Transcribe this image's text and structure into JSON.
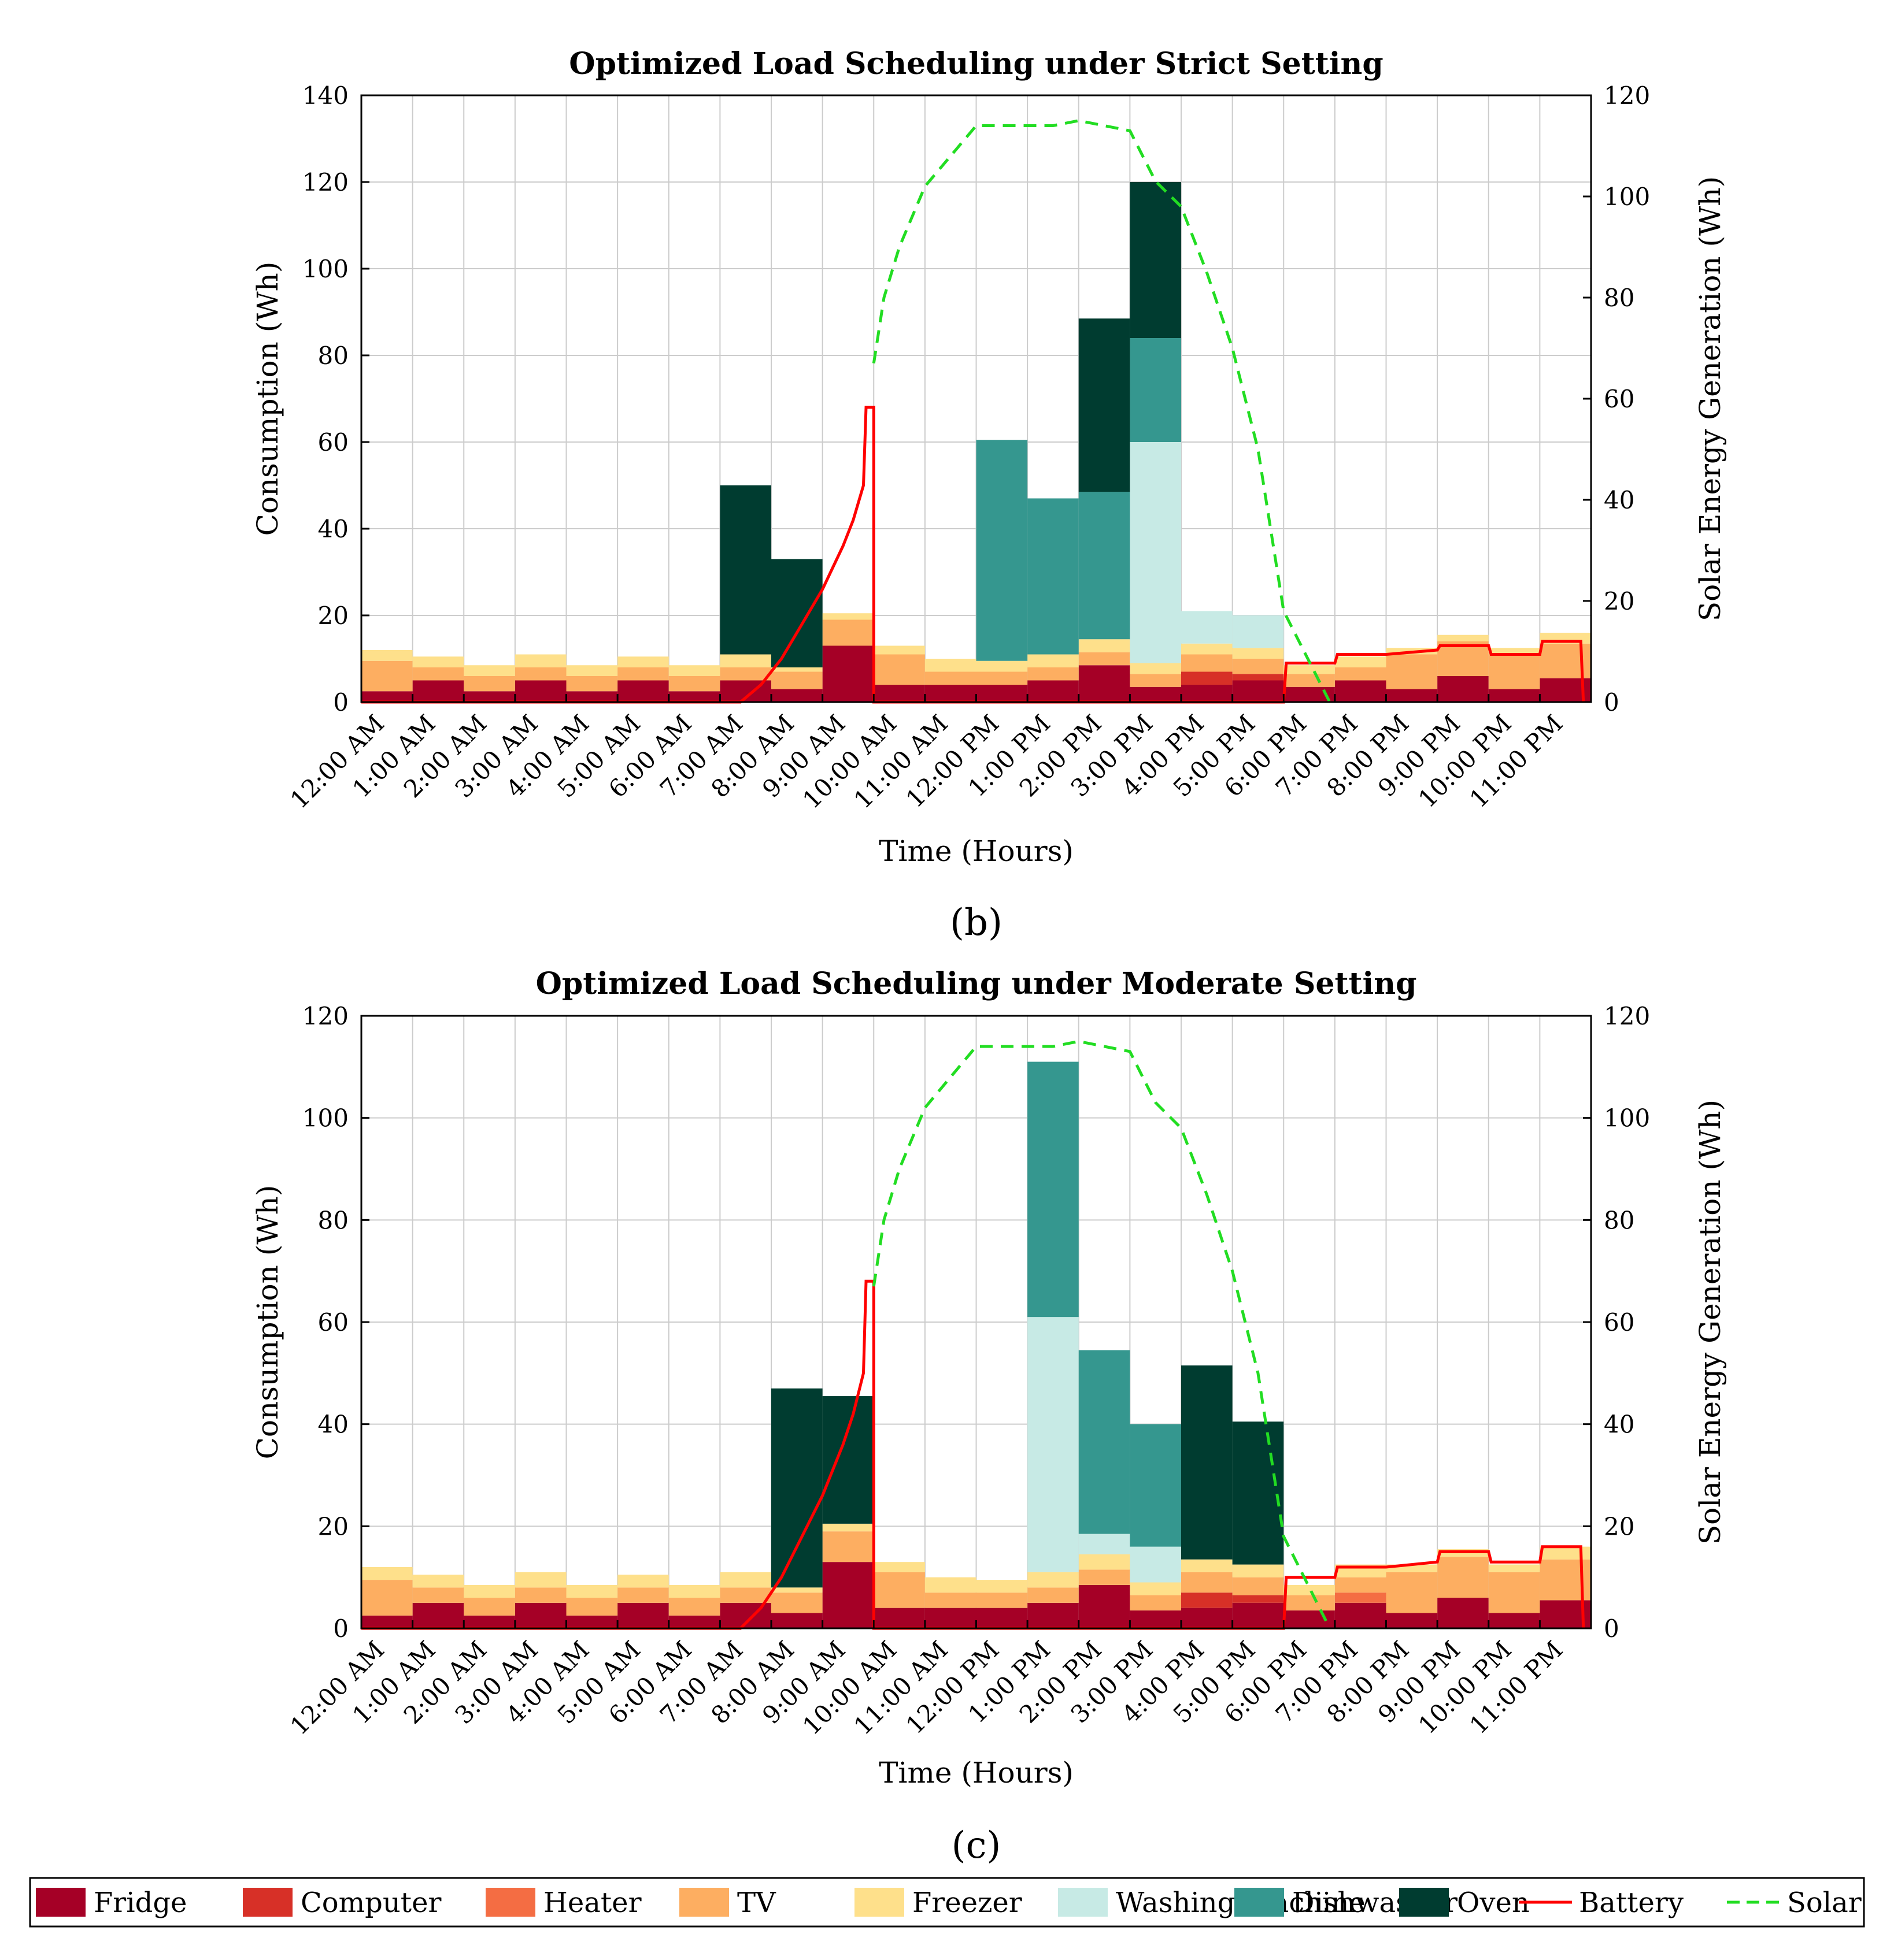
{
  "colors": {
    "Fridge": "#a50026",
    "Computer": "#d73027",
    "Heater": "#f46d43",
    "TV": "#fdae61",
    "Freezer": "#fee08b",
    "Washing Machine": "#c7eae5",
    "Dishwasher": "#35978f",
    "Oven": "#003c30",
    "Battery": "#ff0000",
    "Solar": "#22dd22"
  },
  "legend": {
    "items": [
      {
        "label": "Fridge",
        "kind": "box",
        "color": "#a50026"
      },
      {
        "label": "Computer",
        "kind": "box",
        "color": "#d73027"
      },
      {
        "label": "Heater",
        "kind": "box",
        "color": "#f46d43"
      },
      {
        "label": "TV",
        "kind": "box",
        "color": "#fdae61"
      },
      {
        "label": "Freezer",
        "kind": "box",
        "color": "#fee08b"
      },
      {
        "label": "Washing Machine",
        "kind": "box",
        "color": "#c7eae5"
      },
      {
        "label": "Dishwasher",
        "kind": "box",
        "color": "#35978f"
      },
      {
        "label": "Oven",
        "kind": "box",
        "color": "#003c30"
      },
      {
        "label": "Battery",
        "kind": "line",
        "color": "#ff0000"
      },
      {
        "label": "Solar",
        "kind": "dash",
        "color": "#22dd22"
      }
    ]
  },
  "chart_data": [
    {
      "type": "bar",
      "panel_label": "(b)",
      "title": "Optimized Load Scheduling under Strict Setting",
      "xlabel": "Time (Hours)",
      "ylabel": "Consumption (Wh)",
      "y2label": "Solar Energy Generation (Wh)",
      "ylim": [
        0,
        140
      ],
      "yticks": [
        0,
        20,
        40,
        60,
        80,
        100,
        120,
        140
      ],
      "y2lim": [
        0,
        120
      ],
      "y2ticks": [
        0,
        20,
        40,
        60,
        80,
        100,
        120
      ],
      "xlim": [
        0,
        24
      ],
      "grid": true,
      "categories": [
        "12:00 AM",
        "1:00 AM",
        "2:00 AM",
        "3:00 AM",
        "4:00 AM",
        "5:00 AM",
        "6:00 AM",
        "7:00 AM",
        "8:00 AM",
        "9:00 AM",
        "10:00 AM",
        "11:00 AM",
        "12:00 PM",
        "1:00 PM",
        "2:00 PM",
        "3:00 PM",
        "4:00 PM",
        "5:00 PM",
        "6:00 PM",
        "7:00 PM",
        "8:00 PM",
        "9:00 PM",
        "10:00 PM",
        "11:00 PM"
      ],
      "series": [
        {
          "name": "Fridge",
          "values": [
            2.5,
            5,
            2.5,
            5,
            2.5,
            5,
            2.5,
            5,
            3,
            13,
            4,
            4,
            4,
            5,
            8.5,
            3.5,
            4,
            5,
            3.5,
            5,
            3,
            6,
            3,
            5.5
          ]
        },
        {
          "name": "Computer",
          "values": [
            0,
            0,
            0,
            0,
            0,
            0,
            0,
            0,
            0,
            0,
            0,
            0,
            0,
            0,
            0,
            0,
            3,
            1.5,
            0,
            0,
            0,
            0,
            0,
            0
          ]
        },
        {
          "name": "Heater",
          "values": [
            0,
            0,
            0,
            0,
            0,
            0,
            0,
            0,
            0,
            0,
            0,
            0,
            0,
            0,
            0,
            0,
            0,
            0,
            0,
            0,
            0,
            0,
            0,
            0
          ]
        },
        {
          "name": "TV",
          "values": [
            7,
            3,
            3.5,
            3,
            3.5,
            3,
            3.5,
            3,
            4,
            6,
            7,
            3,
            3,
            3,
            3,
            3,
            4,
            3.5,
            3,
            3,
            8,
            8,
            8,
            8
          ]
        },
        {
          "name": "Freezer",
          "values": [
            2.5,
            2.5,
            2.5,
            3,
            2.5,
            2.5,
            2.5,
            3,
            1,
            1.5,
            2,
            3,
            2.5,
            3,
            3,
            2.5,
            2.5,
            2.5,
            2,
            2.5,
            1.5,
            1.5,
            1.5,
            2.5
          ]
        },
        {
          "name": "Washing Machine",
          "values": [
            0,
            0,
            0,
            0,
            0,
            0,
            0,
            0,
            0,
            0,
            0,
            0,
            0,
            0,
            0,
            51,
            7.5,
            7.5,
            0,
            0,
            0,
            0,
            0,
            0
          ]
        },
        {
          "name": "Dishwasher",
          "values": [
            0,
            0,
            0,
            0,
            0,
            0,
            0,
            0,
            0,
            0,
            0,
            0,
            51,
            36,
            34,
            24,
            0,
            0,
            0,
            0,
            0,
            0,
            0,
            0
          ]
        },
        {
          "name": "Oven",
          "values": [
            0,
            0,
            0,
            0,
            0,
            0,
            0,
            39,
            25,
            0,
            0,
            0,
            0,
            0,
            40,
            36,
            0,
            0,
            0,
            0,
            0,
            0,
            0,
            0
          ]
        }
      ],
      "battery": {
        "x": [
          0,
          7.4,
          7.8,
          8.2,
          8.6,
          9.0,
          9.2,
          9.4,
          9.6,
          9.8,
          9.85,
          10.0,
          10.0,
          18.0,
          18.05,
          19.0,
          19.05,
          20.0,
          21.0,
          21.05,
          22.0,
          22.05,
          23.0,
          23.05,
          23.8,
          23.85
        ],
        "y": [
          0,
          0,
          4,
          10,
          18,
          26,
          31,
          36,
          42,
          50,
          68,
          68,
          0,
          0,
          9,
          9,
          11,
          11,
          12,
          13,
          13,
          11,
          11,
          14,
          14,
          0
        ]
      },
      "solar": {
        "x": [
          10.0,
          10.2,
          10.5,
          11.0,
          11.5,
          12.0,
          12.5,
          13.0,
          13.5,
          14.0,
          14.5,
          15.0,
          15.5,
          16.0,
          16.5,
          17.0,
          17.5,
          18.0,
          18.5,
          18.9
        ],
        "y": [
          67,
          80,
          90,
          102,
          108,
          114,
          114,
          114,
          114,
          115,
          114,
          113,
          103,
          98,
          85,
          70,
          50,
          18,
          8,
          0
        ]
      }
    },
    {
      "type": "bar",
      "panel_label": "(c)",
      "title": "Optimized Load Scheduling under Moderate Setting",
      "xlabel": "Time (Hours)",
      "ylabel": "Consumption (Wh)",
      "y2label": "Solar Energy Generation (Wh)",
      "ylim": [
        0,
        120
      ],
      "yticks": [
        0,
        20,
        40,
        60,
        80,
        100,
        120
      ],
      "y2lim": [
        0,
        120
      ],
      "y2ticks": [
        0,
        20,
        40,
        60,
        80,
        100,
        120
      ],
      "xlim": [
        0,
        24
      ],
      "grid": true,
      "categories": [
        "12:00 AM",
        "1:00 AM",
        "2:00 AM",
        "3:00 AM",
        "4:00 AM",
        "5:00 AM",
        "6:00 AM",
        "7:00 AM",
        "8:00 AM",
        "9:00 AM",
        "10:00 AM",
        "11:00 AM",
        "12:00 PM",
        "1:00 PM",
        "2:00 PM",
        "3:00 PM",
        "4:00 PM",
        "5:00 PM",
        "6:00 PM",
        "7:00 PM",
        "8:00 PM",
        "9:00 PM",
        "10:00 PM",
        "11:00 PM"
      ],
      "series": [
        {
          "name": "Fridge",
          "values": [
            2.5,
            5,
            2.5,
            5,
            2.5,
            5,
            2.5,
            5,
            3,
            13,
            4,
            4,
            4,
            5,
            8.5,
            3.5,
            4,
            5,
            3.5,
            5,
            3,
            6,
            3,
            5.5
          ]
        },
        {
          "name": "Computer",
          "values": [
            0,
            0,
            0,
            0,
            0,
            0,
            0,
            0,
            0,
            0,
            0,
            0,
            0,
            0,
            0,
            0,
            3,
            1.5,
            0,
            0,
            0,
            0,
            0,
            0
          ]
        },
        {
          "name": "Heater",
          "values": [
            0,
            0,
            0,
            0,
            0,
            0,
            0,
            0,
            0,
            0,
            0,
            0,
            0,
            0,
            0,
            0,
            0,
            0,
            0,
            2,
            0,
            0,
            0,
            0
          ]
        },
        {
          "name": "TV",
          "values": [
            7,
            3,
            3.5,
            3,
            3.5,
            3,
            3.5,
            3,
            4,
            6,
            7,
            3,
            3,
            3,
            3,
            3,
            4,
            3.5,
            3,
            3,
            8,
            8,
            8,
            8
          ]
        },
        {
          "name": "Freezer",
          "values": [
            2.5,
            2.5,
            2.5,
            3,
            2.5,
            2.5,
            2.5,
            3,
            1,
            1.5,
            2,
            3,
            2.5,
            3,
            3,
            2.5,
            2.5,
            2.5,
            2,
            2.5,
            1.5,
            1.5,
            1.5,
            2.5
          ]
        },
        {
          "name": "Washing Machine",
          "values": [
            0,
            0,
            0,
            0,
            0,
            0,
            0,
            0,
            0,
            0,
            0,
            0,
            0,
            50,
            4,
            7,
            0,
            0,
            0,
            0,
            0,
            0,
            0,
            0
          ]
        },
        {
          "name": "Dishwasher",
          "values": [
            0,
            0,
            0,
            0,
            0,
            0,
            0,
            0,
            0,
            0,
            0,
            0,
            0,
            50,
            36,
            24,
            0,
            0,
            0,
            0,
            0,
            0,
            0,
            0
          ]
        },
        {
          "name": "Oven",
          "values": [
            0,
            0,
            0,
            0,
            0,
            0,
            0,
            0,
            39,
            25,
            0,
            0,
            0,
            0,
            0,
            0,
            38,
            28,
            0,
            0,
            0,
            0,
            0,
            0
          ]
        }
      ],
      "battery": {
        "x": [
          0,
          7.4,
          7.8,
          8.2,
          8.6,
          9.0,
          9.2,
          9.4,
          9.6,
          9.8,
          9.85,
          10.0,
          10.0,
          18.0,
          18.05,
          19.0,
          19.05,
          20.0,
          21.0,
          21.05,
          22.0,
          22.05,
          23.0,
          23.05,
          23.8,
          23.85
        ],
        "y": [
          0,
          0,
          4,
          10,
          18,
          26,
          31,
          36,
          42,
          50,
          68,
          68,
          0,
          0,
          10,
          10,
          12,
          12,
          13,
          15,
          15,
          13,
          13,
          16,
          16,
          0
        ]
      },
      "solar": {
        "x": [
          10.0,
          10.2,
          10.5,
          11.0,
          11.5,
          12.0,
          12.5,
          13.0,
          13.5,
          14.0,
          14.5,
          15.0,
          15.5,
          16.0,
          16.5,
          17.0,
          17.5,
          18.0,
          18.5,
          18.9
        ],
        "y": [
          67,
          80,
          90,
          102,
          108,
          114,
          114,
          114,
          114,
          115,
          114,
          113,
          103,
          98,
          85,
          70,
          50,
          18,
          8,
          0
        ]
      }
    }
  ]
}
